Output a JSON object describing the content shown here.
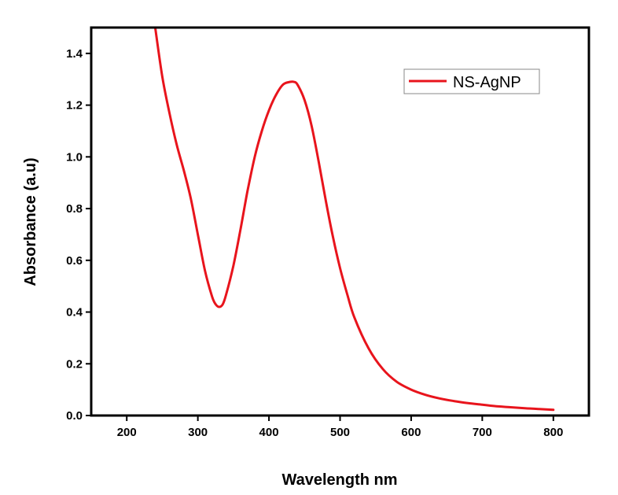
{
  "chart_data": {
    "type": "line",
    "xlabel": "Wavelength nm",
    "ylabel": "Absorbance (a.u)",
    "xlim": [
      150,
      850
    ],
    "ylim": [
      0,
      1.5
    ],
    "xticks": [
      200,
      300,
      400,
      500,
      600,
      700,
      800
    ],
    "yticks": [
      0.0,
      0.2,
      0.4,
      0.6,
      0.8,
      1.0,
      1.2,
      1.4
    ],
    "ytick_labels": [
      "0.0",
      "0.2",
      "0.4",
      "0.6",
      "0.8",
      "1.0",
      "1.2",
      "1.4"
    ],
    "grid": false,
    "legend_position": "top-right",
    "series": [
      {
        "name": "NS-AgNP",
        "color": "#e8141c",
        "x": [
          240,
          250,
          260,
          270,
          280,
          290,
          300,
          310,
          320,
          325,
          330,
          335,
          340,
          350,
          360,
          370,
          380,
          390,
          400,
          410,
          420,
          430,
          435,
          440,
          450,
          460,
          470,
          480,
          490,
          500,
          510,
          520,
          540,
          560,
          580,
          600,
          620,
          640,
          660,
          680,
          700,
          720,
          740,
          760,
          780,
          800
        ],
        "y": [
          1.5,
          1.31,
          1.17,
          1.05,
          0.95,
          0.84,
          0.7,
          0.56,
          0.46,
          0.43,
          0.42,
          0.43,
          0.47,
          0.58,
          0.72,
          0.87,
          1.0,
          1.1,
          1.18,
          1.24,
          1.28,
          1.29,
          1.29,
          1.28,
          1.22,
          1.12,
          0.98,
          0.83,
          0.69,
          0.57,
          0.47,
          0.38,
          0.26,
          0.18,
          0.13,
          0.1,
          0.08,
          0.066,
          0.056,
          0.048,
          0.042,
          0.036,
          0.032,
          0.028,
          0.025,
          0.022
        ]
      }
    ]
  }
}
